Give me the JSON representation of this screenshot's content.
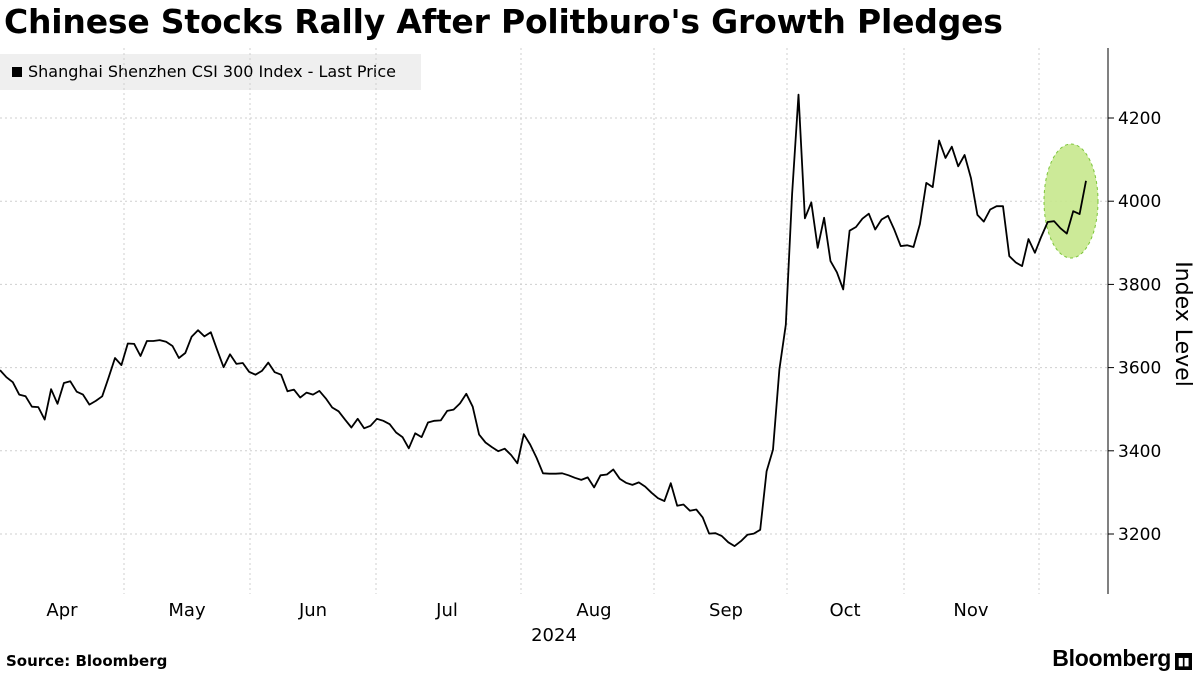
{
  "title": "Chinese Stocks Rally After Politburo's Growth Pledges",
  "source": "Source: Bloomberg",
  "brand": "Bloomberg",
  "brand_mark_icon": "bar-chart-icon",
  "colors": {
    "line": "#000000",
    "grid": "#cfcfcf",
    "highlight_fill": "#c6e88d",
    "highlight_stroke": "#7cc53a",
    "legend_bg": "#efefef"
  },
  "chart_data": {
    "type": "line",
    "title": "Chinese Stocks Rally After Politburo's Growth Pledges",
    "legend": [
      "Shanghai Shenzhen CSI 300 Index - Last Price"
    ],
    "ylabel": "Index Level",
    "xlabel": "2024",
    "ylim": [
      3070,
      4360
    ],
    "yticks": [
      3200,
      3400,
      3600,
      3800,
      4000,
      4200
    ],
    "xticks": [
      "Apr",
      "May",
      "Jun",
      "Jul",
      "Aug",
      "Sep",
      "Oct",
      "Nov"
    ],
    "x_year_label": "2024",
    "annotation": "highlighted latest rally (Dec 9 2024 Politburo meeting)",
    "series": [
      {
        "name": "Shanghai Shenzhen CSI 300 Index - Last Price",
        "values": [
          3594,
          3577,
          3565,
          3535,
          3531,
          3506,
          3505,
          3475,
          3548,
          3513,
          3563,
          3567,
          3542,
          3535,
          3511,
          3520,
          3531,
          3576,
          3623,
          3606,
          3658,
          3657,
          3628,
          3664,
          3664,
          3666,
          3662,
          3652,
          3623,
          3635,
          3674,
          3690,
          3675,
          3685,
          3642,
          3601,
          3632,
          3609,
          3611,
          3590,
          3583,
          3592,
          3612,
          3589,
          3583,
          3543,
          3547,
          3528,
          3540,
          3535,
          3544,
          3526,
          3504,
          3495,
          3475,
          3456,
          3477,
          3454,
          3460,
          3477,
          3472,
          3464,
          3444,
          3433,
          3406,
          3442,
          3433,
          3468,
          3472,
          3473,
          3496,
          3499,
          3514,
          3537,
          3506,
          3439,
          3420,
          3409,
          3399,
          3405,
          3390,
          3370,
          3440,
          3415,
          3383,
          3346,
          3345,
          3345,
          3346,
          3341,
          3335,
          3330,
          3336,
          3312,
          3341,
          3343,
          3355,
          3333,
          3323,
          3318,
          3324,
          3314,
          3299,
          3286,
          3279,
          3322,
          3268,
          3271,
          3256,
          3259,
          3240,
          3201,
          3202,
          3195,
          3180,
          3171,
          3183,
          3198,
          3201,
          3210,
          3351,
          3403,
          3596,
          3703,
          4017,
          4256,
          3959,
          3997,
          3888,
          3960,
          3856,
          3829,
          3788,
          3929,
          3938,
          3958,
          3970,
          3932,
          3956,
          3965,
          3931,
          3892,
          3894,
          3890,
          3945,
          4044,
          4034,
          4146,
          4104,
          4131,
          4084,
          4111,
          4055,
          3967,
          3951,
          3980,
          3988,
          3988,
          3868,
          3853,
          3844,
          3909,
          3876,
          3915,
          3950,
          3952,
          3935,
          3922,
          3976,
          3969,
          4049
        ]
      }
    ]
  }
}
